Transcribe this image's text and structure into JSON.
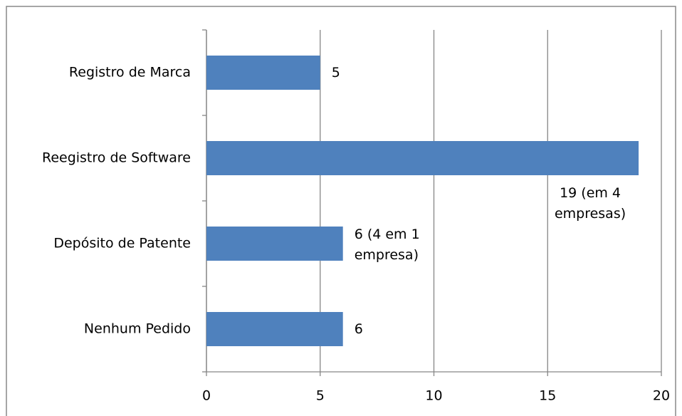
{
  "chart_data": {
    "type": "bar",
    "orientation": "horizontal",
    "categories": [
      "Registro de Marca",
      "Reegistro de Software",
      "Depósito de Patente",
      "Nenhum Pedido"
    ],
    "values": [
      5,
      19,
      6,
      6
    ],
    "value_labels": [
      "5",
      "19 (em 4 empresas)",
      "6 (4 em 1 empresa)",
      "6"
    ],
    "color": "#4f81bd",
    "xlim": [
      0,
      20
    ],
    "xticks": [
      0,
      5,
      10,
      15,
      20
    ],
    "grid": true
  }
}
